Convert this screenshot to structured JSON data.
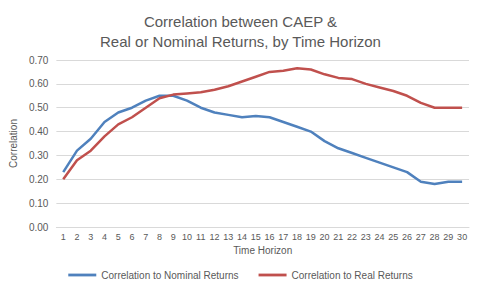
{
  "chart_data": {
    "type": "line",
    "title": "Correlation between CAEP &\nReal or Nominal Returns, by Time Horizon",
    "x_label": "Time Horizon",
    "y_label": "Correlation",
    "categories": [
      1,
      2,
      3,
      4,
      5,
      6,
      7,
      8,
      9,
      10,
      11,
      12,
      13,
      14,
      15,
      16,
      17,
      18,
      19,
      20,
      21,
      22,
      23,
      24,
      25,
      26,
      27,
      28,
      29,
      30
    ],
    "series": [
      {
        "name": "Correlation to Nominal Returns",
        "color": "#4f81bd",
        "values": [
          0.23,
          0.32,
          0.37,
          0.44,
          0.48,
          0.5,
          0.53,
          0.55,
          0.55,
          0.53,
          0.5,
          0.48,
          0.47,
          0.46,
          0.465,
          0.46,
          0.44,
          0.42,
          0.4,
          0.36,
          0.33,
          0.31,
          0.29,
          0.27,
          0.25,
          0.23,
          0.19,
          0.18,
          0.19,
          0.19
        ]
      },
      {
        "name": "Correlation to Real Returns",
        "color": "#c0504d",
        "values": [
          0.2,
          0.28,
          0.32,
          0.38,
          0.43,
          0.46,
          0.5,
          0.54,
          0.555,
          0.56,
          0.565,
          0.575,
          0.59,
          0.61,
          0.63,
          0.65,
          0.655,
          0.665,
          0.66,
          0.64,
          0.625,
          0.62,
          0.6,
          0.585,
          0.57,
          0.55,
          0.52,
          0.5,
          0.5,
          0.5
        ]
      }
    ],
    "ylim": [
      0,
      0.7
    ],
    "yticks": [
      {
        "value": 0,
        "label": "0.00"
      },
      {
        "value": 0.1,
        "label": "0.10"
      },
      {
        "value": 0.2,
        "label": "0.20"
      },
      {
        "value": 0.3,
        "label": "0.30"
      },
      {
        "value": 0.4,
        "label": "0.40"
      },
      {
        "value": 0.5,
        "label": "0.50"
      },
      {
        "value": 0.6,
        "label": "0.60"
      },
      {
        "value": 0.7,
        "label": "0.70"
      }
    ],
    "grid": true,
    "legend": "bottom"
  }
}
